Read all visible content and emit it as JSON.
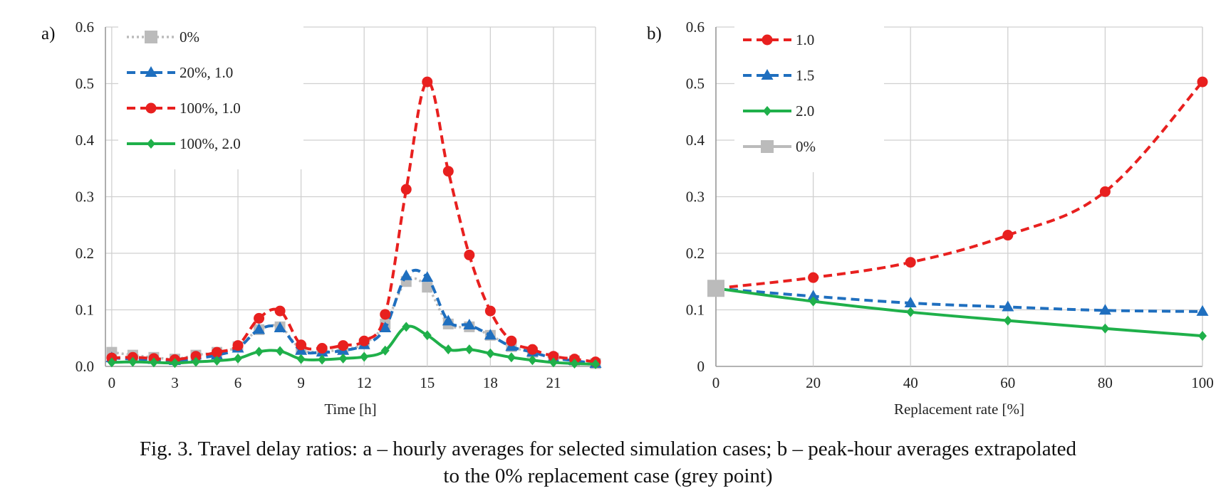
{
  "caption": {
    "line1": "Fig. 3. Travel delay ratios: a – hourly averages for selected simulation cases; b – peak-hour averages extrapolated",
    "line2": "to the 0% replacement case (grey point)"
  },
  "chart_data": [
    {
      "panel_label": "a)",
      "type": "line",
      "title": "",
      "xlabel": "Time [h]",
      "ylabel": "",
      "xlim": [
        -0.3,
        23
      ],
      "ylim": [
        0,
        0.6
      ],
      "xticks": [
        "0",
        "3",
        "6",
        "9",
        "12",
        "15",
        "18",
        "21"
      ],
      "yticks": [
        "0.0",
        "0.1",
        "0.2",
        "0.3",
        "0.4",
        "0.5",
        "0.6"
      ],
      "grid": true,
      "legend_position": "top-left",
      "series": [
        {
          "name": "0%",
          "color": "#bbbbbb",
          "line_style": "dotted",
          "marker": "square",
          "x": [
            0,
            1,
            2,
            3,
            4,
            5,
            6,
            7,
            8,
            9,
            10,
            11,
            12,
            13,
            14,
            15,
            16,
            17,
            18,
            19,
            20,
            21,
            22,
            23
          ],
          "y": [
            0.025,
            0.02,
            0.016,
            0.013,
            0.02,
            0.025,
            0.035,
            0.065,
            0.07,
            0.03,
            0.027,
            0.03,
            0.04,
            0.075,
            0.15,
            0.14,
            0.075,
            0.07,
            0.055,
            0.035,
            0.025,
            0.015,
            0.01,
            0.005
          ]
        },
        {
          "name": "20%, 1.0",
          "color": "#1f6fbf",
          "line_style": "dashed",
          "marker": "triangle",
          "x": [
            0,
            1,
            2,
            3,
            4,
            5,
            6,
            7,
            8,
            9,
            10,
            11,
            12,
            13,
            14,
            15,
            16,
            17,
            18,
            19,
            20,
            21,
            22,
            23
          ],
          "y": [
            0.015,
            0.013,
            0.012,
            0.01,
            0.014,
            0.02,
            0.032,
            0.065,
            0.068,
            0.028,
            0.025,
            0.028,
            0.038,
            0.068,
            0.16,
            0.157,
            0.08,
            0.073,
            0.055,
            0.035,
            0.025,
            0.015,
            0.01,
            0.005
          ]
        },
        {
          "name": "100%, 1.0",
          "color": "#e8201f",
          "line_style": "dashed",
          "marker": "circle",
          "x": [
            0,
            1,
            2,
            3,
            4,
            5,
            6,
            7,
            8,
            9,
            10,
            11,
            12,
            13,
            14,
            15,
            16,
            17,
            18,
            19,
            20,
            21,
            22,
            23
          ],
          "y": [
            0.015,
            0.016,
            0.014,
            0.012,
            0.018,
            0.025,
            0.037,
            0.085,
            0.098,
            0.038,
            0.032,
            0.037,
            0.045,
            0.092,
            0.313,
            0.503,
            0.345,
            0.197,
            0.098,
            0.045,
            0.03,
            0.018,
            0.013,
            0.008
          ]
        },
        {
          "name": "100%, 2.0",
          "color": "#1fb04a",
          "line_style": "solid",
          "marker": "diamond",
          "x": [
            0,
            1,
            2,
            3,
            4,
            5,
            6,
            7,
            8,
            9,
            10,
            11,
            12,
            13,
            14,
            15,
            16,
            17,
            18,
            19,
            20,
            21,
            22,
            23
          ],
          "y": [
            0.007,
            0.008,
            0.007,
            0.006,
            0.008,
            0.01,
            0.014,
            0.026,
            0.027,
            0.013,
            0.012,
            0.014,
            0.017,
            0.028,
            0.07,
            0.055,
            0.03,
            0.03,
            0.023,
            0.016,
            0.011,
            0.007,
            0.005,
            0.004
          ]
        }
      ]
    },
    {
      "panel_label": "b)",
      "type": "line",
      "title": "",
      "xlabel": "Replacement rate [%]",
      "ylabel": "",
      "xlim": [
        0,
        100
      ],
      "ylim": [
        0,
        0.6
      ],
      "xticks": [
        "0",
        "20",
        "40",
        "60",
        "80",
        "100"
      ],
      "yticks": [
        "0",
        "0.1",
        "0.2",
        "0.3",
        "0.4",
        "0.5",
        "0.6"
      ],
      "grid": true,
      "legend_position": "top-left",
      "series": [
        {
          "name": "1.0",
          "color": "#e8201f",
          "line_style": "dashed",
          "marker": "circle",
          "x": [
            0,
            20,
            40,
            60,
            80,
            100
          ],
          "y": [
            0.138,
            0.157,
            0.184,
            0.232,
            0.309,
            0.503
          ]
        },
        {
          "name": "1.5",
          "color": "#1f6fbf",
          "line_style": "dashed",
          "marker": "triangle",
          "x": [
            0,
            20,
            40,
            60,
            80,
            100
          ],
          "y": [
            0.138,
            0.124,
            0.112,
            0.105,
            0.099,
            0.097
          ]
        },
        {
          "name": "2.0",
          "color": "#1fb04a",
          "line_style": "solid",
          "marker": "diamond",
          "x": [
            0,
            20,
            40,
            60,
            80,
            100
          ],
          "y": [
            0.138,
            0.115,
            0.096,
            0.081,
            0.067,
            0.054
          ]
        },
        {
          "name": "0%",
          "color": "#bbbbbb",
          "line_style": "solid",
          "marker": "square",
          "x": [
            0
          ],
          "y": [
            0.138
          ]
        }
      ]
    }
  ]
}
